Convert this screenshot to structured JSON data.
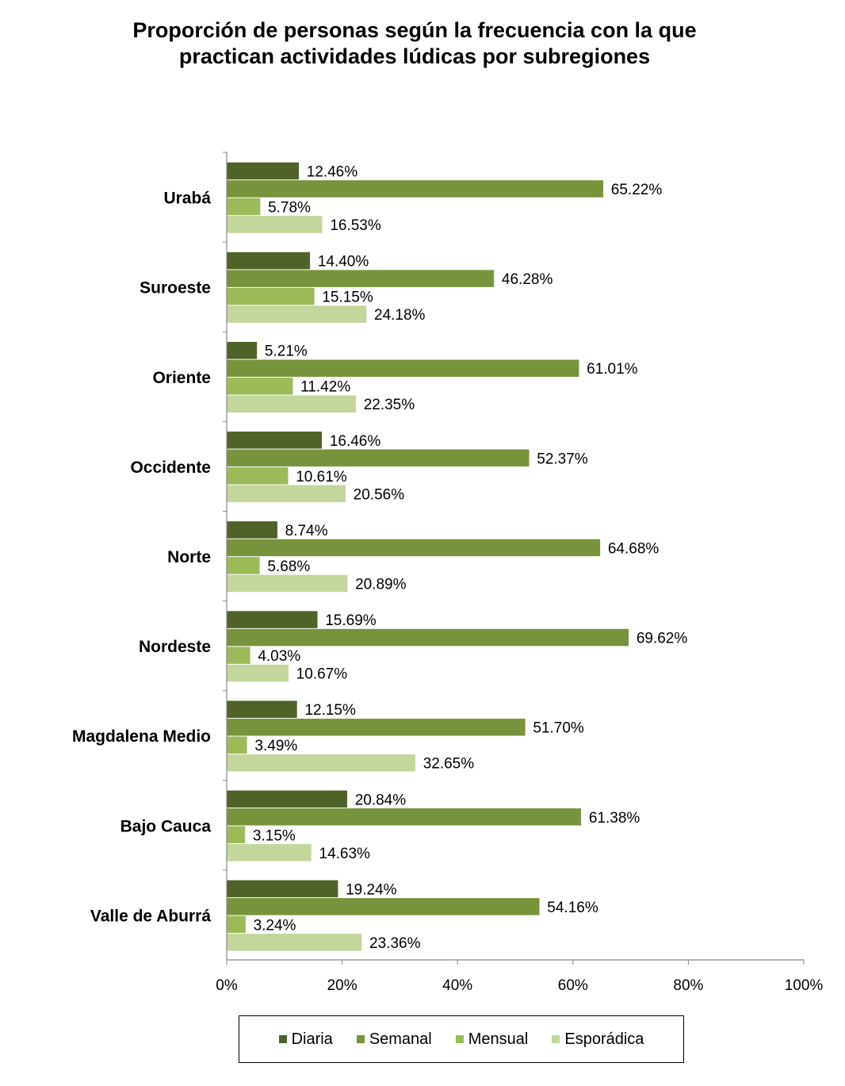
{
  "chart_data": {
    "type": "bar",
    "orientation": "horizontal",
    "title": "Proporción de personas según la frecuencia con la que practican actividades lúdicas por subregiones",
    "title_lines": [
      "Proporción de personas según la frecuencia con la que",
      "practican actividades lúdicas por subregiones"
    ],
    "categories": [
      "Urabá",
      "Suroeste",
      "Oriente",
      "Occidente",
      "Norte",
      "Nordeste",
      "Magdalena Medio",
      "Bajo Cauca",
      "Valle de Aburrá"
    ],
    "series": [
      {
        "name": "Diaria",
        "color": "#4f6228",
        "values": [
          12.46,
          14.4,
          5.21,
          16.46,
          8.74,
          15.69,
          12.15,
          20.84,
          19.24
        ]
      },
      {
        "name": "Semanal",
        "color": "#77933c",
        "values": [
          65.22,
          46.28,
          61.01,
          52.37,
          64.68,
          69.62,
          51.7,
          61.38,
          54.16
        ]
      },
      {
        "name": "Mensual",
        "color": "#9bbb59",
        "values": [
          5.78,
          15.15,
          11.42,
          10.61,
          5.68,
          4.03,
          3.49,
          3.15,
          3.24
        ]
      },
      {
        "name": "Esporádica",
        "color": "#c3d69b",
        "values": [
          16.53,
          24.18,
          22.35,
          20.56,
          20.89,
          10.67,
          32.65,
          14.63,
          23.36
        ]
      }
    ],
    "data_labels": [
      [
        "12.46%",
        "14.40%",
        "5.21%",
        "16.46%",
        "8.74%",
        "15.69%",
        "12.15%",
        "20.84%",
        "19.24%"
      ],
      [
        "65.22%",
        "46.28%",
        "61.01%",
        "52.37%",
        "64.68%",
        "69.62%",
        "51.70%",
        "61.38%",
        "54.16%"
      ],
      [
        "5.78%",
        "15.15%",
        "11.42%",
        "10.61%",
        "5.68%",
        "4.03%",
        "3.49%",
        "3.15%",
        "3.24%"
      ],
      [
        "16.53%",
        "24.18%",
        "22.35%",
        "20.56%",
        "20.89%",
        "10.67%",
        "32.65%",
        "14.63%",
        "23.36%"
      ]
    ],
    "x_ticks": [
      "0%",
      "20%",
      "40%",
      "60%",
      "80%",
      "100%"
    ],
    "xlim": [
      0,
      100
    ],
    "grid": false,
    "legend_position": "bottom"
  }
}
